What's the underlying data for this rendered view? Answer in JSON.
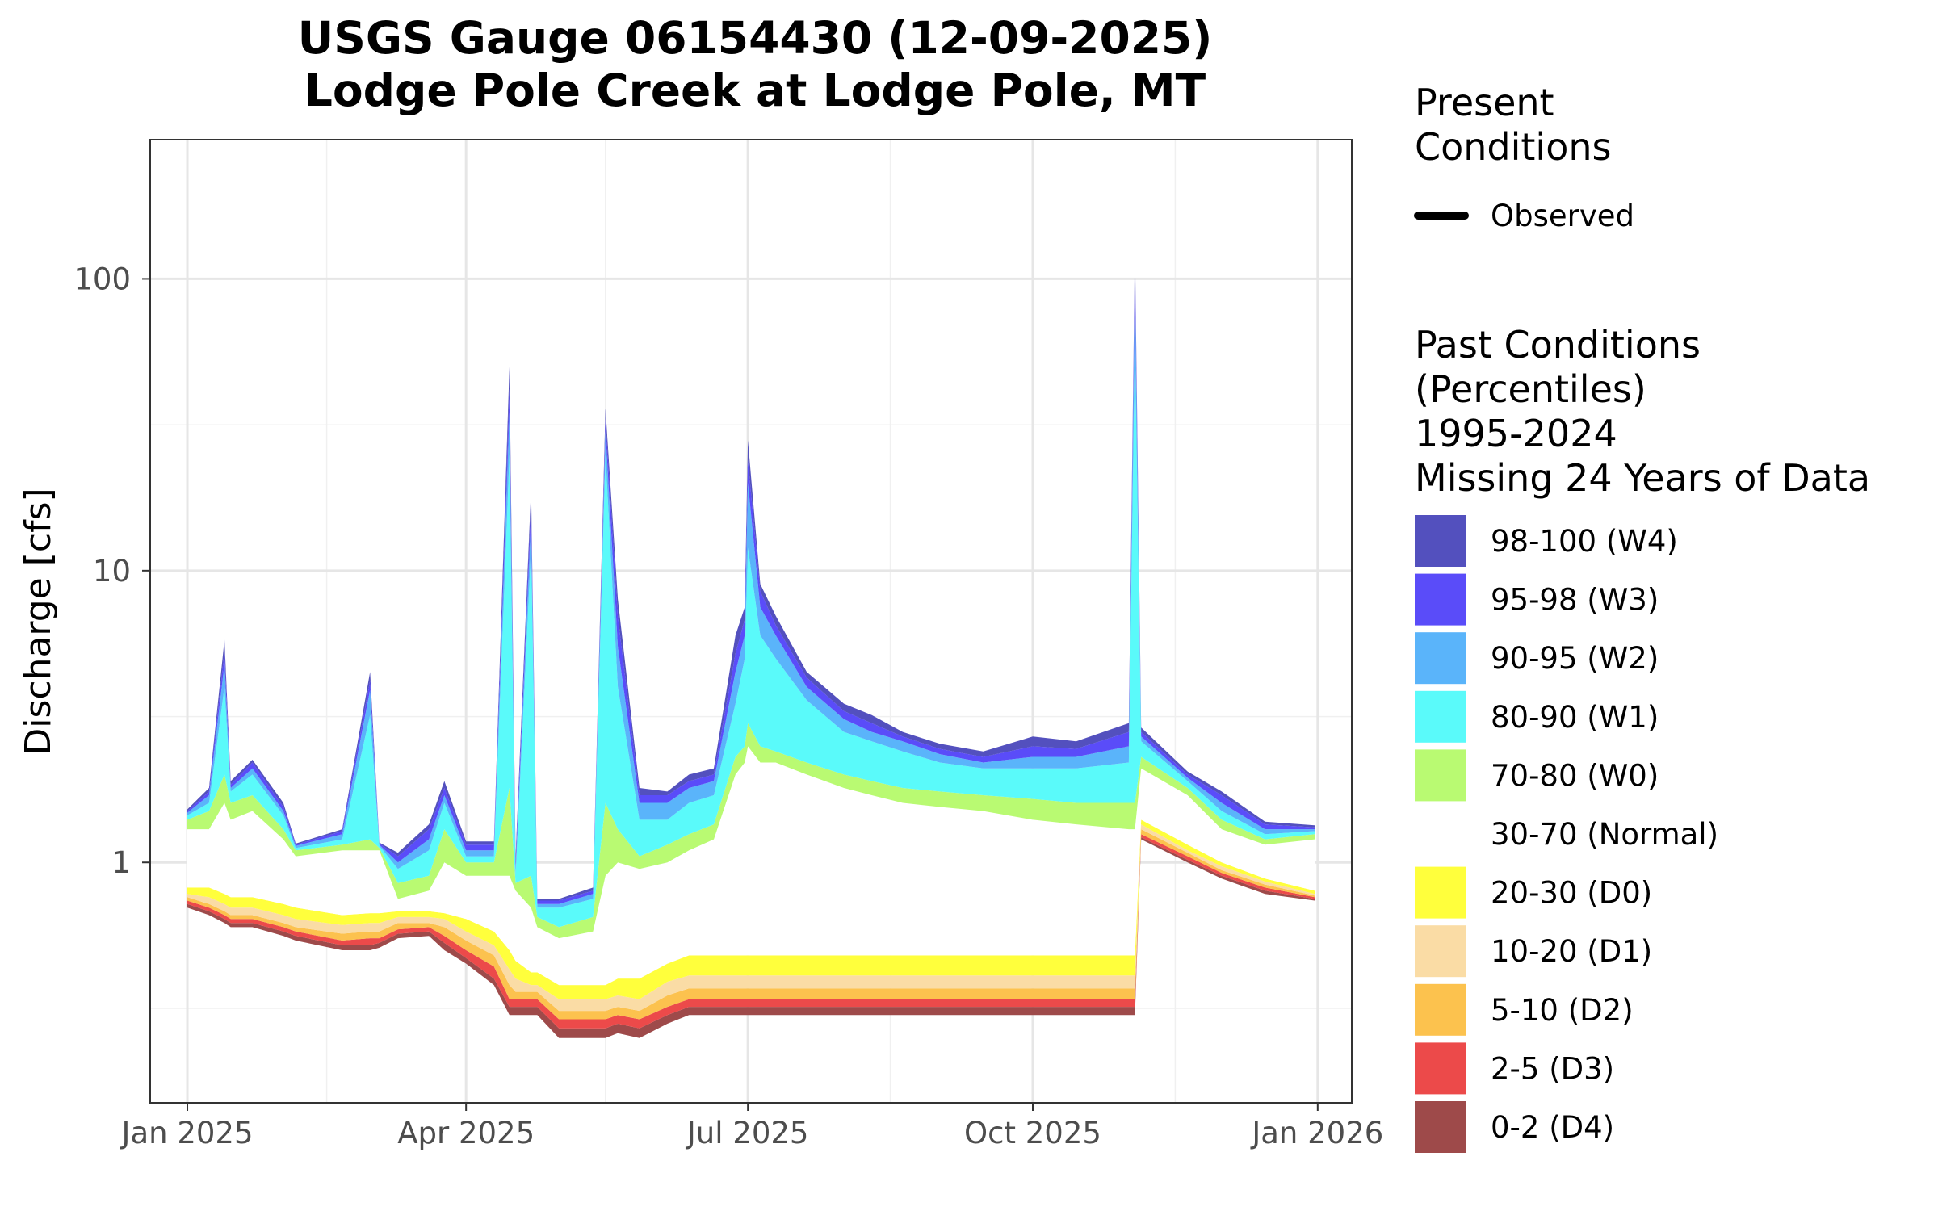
{
  "chart_data": {
    "type": "area",
    "title": "USGS Gauge 06154430 (12-09-2025)",
    "subtitle": "Lodge Pole Creek at Lodge Pole, MT",
    "xlabel": "",
    "ylabel": "Discharge [cfs]",
    "y_scale": "log",
    "ylim": [
      0.15,
      300
    ],
    "xlim": [
      "2024-12-20",
      "2026-01-12"
    ],
    "x_ticks": [
      {
        "date": "2025-01-01",
        "label": "Jan 2025"
      },
      {
        "date": "2025-04-01",
        "label": "Apr 2025"
      },
      {
        "date": "2025-07-01",
        "label": "Jul 2025"
      },
      {
        "date": "2025-10-01",
        "label": "Oct 2025"
      },
      {
        "date": "2026-01-01",
        "label": "Jan 2026"
      }
    ],
    "x_minor_ticks": [
      "2025-02-15",
      "2025-05-16",
      "2025-08-16",
      "2025-11-16"
    ],
    "y_ticks": [
      {
        "value": 1,
        "label": "1"
      },
      {
        "value": 10,
        "label": "10"
      },
      {
        "value": 100,
        "label": "100"
      }
    ],
    "y_minor_ticks": [
      0.316,
      3.16,
      31.6
    ],
    "grid": true,
    "legend_position": "right",
    "bands": [
      "p0",
      "p2",
      "p5",
      "p10",
      "p20",
      "p30",
      "p70",
      "p80",
      "p90",
      "p95",
      "p98",
      "p100"
    ],
    "series": [
      {
        "date": "2025-01-01",
        "p0": 0.7,
        "p2": 0.72,
        "p5": 0.74,
        "p10": 0.76,
        "p20": 0.78,
        "p30": 0.82,
        "p70": 1.3,
        "p80": 1.4,
        "p90": 1.45,
        "p95": 1.48,
        "p98": 1.5,
        "p100": 1.52
      },
      {
        "date": "2025-01-08",
        "p0": 0.66,
        "p2": 0.68,
        "p5": 0.7,
        "p10": 0.72,
        "p20": 0.76,
        "p30": 0.82,
        "p70": 1.3,
        "p80": 1.5,
        "p90": 1.6,
        "p95": 1.7,
        "p98": 1.75,
        "p100": 1.8
      },
      {
        "date": "2025-01-13",
        "p0": 0.62,
        "p2": 0.64,
        "p5": 0.66,
        "p10": 0.68,
        "p20": 0.72,
        "p30": 0.78,
        "p70": 1.6,
        "p80": 2.0,
        "p90": 4.0,
        "p95": 4.8,
        "p98": 5.3,
        "p100": 5.8
      },
      {
        "date": "2025-01-15",
        "p0": 0.6,
        "p2": 0.62,
        "p5": 0.64,
        "p10": 0.66,
        "p20": 0.7,
        "p30": 0.76,
        "p70": 1.4,
        "p80": 1.6,
        "p90": 1.75,
        "p95": 1.8,
        "p98": 1.85,
        "p100": 1.9
      },
      {
        "date": "2025-01-22",
        "p0": 0.6,
        "p2": 0.62,
        "p5": 0.64,
        "p10": 0.66,
        "p20": 0.7,
        "p30": 0.76,
        "p70": 1.5,
        "p80": 1.7,
        "p90": 2.0,
        "p95": 2.1,
        "p98": 2.2,
        "p100": 2.25
      },
      {
        "date": "2025-02-01",
        "p0": 0.56,
        "p2": 0.58,
        "p5": 0.6,
        "p10": 0.62,
        "p20": 0.66,
        "p30": 0.72,
        "p70": 1.2,
        "p80": 1.3,
        "p90": 1.45,
        "p95": 1.5,
        "p98": 1.55,
        "p100": 1.6
      },
      {
        "date": "2025-02-05",
        "p0": 0.54,
        "p2": 0.56,
        "p5": 0.58,
        "p10": 0.6,
        "p20": 0.64,
        "p30": 0.7,
        "p70": 1.05,
        "p80": 1.1,
        "p90": 1.12,
        "p95": 1.14,
        "p98": 1.15,
        "p100": 1.16
      },
      {
        "date": "2025-02-20",
        "p0": 0.5,
        "p2": 0.52,
        "p5": 0.54,
        "p10": 0.57,
        "p20": 0.61,
        "p30": 0.66,
        "p70": 1.1,
        "p80": 1.15,
        "p90": 1.2,
        "p95": 1.25,
        "p98": 1.28,
        "p100": 1.3
      },
      {
        "date": "2025-03-01",
        "p0": 0.5,
        "p2": 0.52,
        "p5": 0.55,
        "p10": 0.58,
        "p20": 0.62,
        "p30": 0.67,
        "p70": 1.1,
        "p80": 1.2,
        "p90": 3.2,
        "p95": 3.9,
        "p98": 4.2,
        "p100": 4.5
      },
      {
        "date": "2025-03-04",
        "p0": 0.51,
        "p2": 0.53,
        "p5": 0.55,
        "p10": 0.58,
        "p20": 0.62,
        "p30": 0.67,
        "p70": 1.1,
        "p80": 1.12,
        "p90": 1.14,
        "p95": 1.15,
        "p98": 1.16,
        "p100": 1.17
      },
      {
        "date": "2025-03-10",
        "p0": 0.55,
        "p2": 0.57,
        "p5": 0.59,
        "p10": 0.62,
        "p20": 0.65,
        "p30": 0.68,
        "p70": 0.75,
        "p80": 0.85,
        "p90": 0.95,
        "p95": 1.0,
        "p98": 1.05,
        "p100": 1.08
      },
      {
        "date": "2025-03-20",
        "p0": 0.56,
        "p2": 0.58,
        "p5": 0.6,
        "p10": 0.62,
        "p20": 0.65,
        "p30": 0.68,
        "p70": 0.8,
        "p80": 0.9,
        "p90": 1.1,
        "p95": 1.2,
        "p98": 1.3,
        "p100": 1.35
      },
      {
        "date": "2025-03-25",
        "p0": 0.5,
        "p2": 0.53,
        "p5": 0.56,
        "p10": 0.6,
        "p20": 0.64,
        "p30": 0.67,
        "p70": 1.0,
        "p80": 1.3,
        "p90": 1.6,
        "p95": 1.7,
        "p98": 1.8,
        "p100": 1.9
      },
      {
        "date": "2025-04-01",
        "p0": 0.45,
        "p2": 0.47,
        "p5": 0.5,
        "p10": 0.54,
        "p20": 0.58,
        "p30": 0.64,
        "p70": 0.9,
        "p80": 1.0,
        "p90": 1.05,
        "p95": 1.1,
        "p98": 1.15,
        "p100": 1.18
      },
      {
        "date": "2025-04-10",
        "p0": 0.38,
        "p2": 0.4,
        "p5": 0.44,
        "p10": 0.48,
        "p20": 0.52,
        "p30": 0.58,
        "p70": 0.9,
        "p80": 1.0,
        "p90": 1.05,
        "p95": 1.1,
        "p98": 1.15,
        "p100": 1.18
      },
      {
        "date": "2025-04-15",
        "p0": 0.3,
        "p2": 0.32,
        "p5": 0.34,
        "p10": 0.38,
        "p20": 0.43,
        "p30": 0.5,
        "p70": 0.9,
        "p80": 1.8,
        "p90": 25,
        "p95": 35,
        "p98": 42,
        "p100": 50
      },
      {
        "date": "2025-04-17",
        "p0": 0.3,
        "p2": 0.32,
        "p5": 0.34,
        "p10": 0.36,
        "p20": 0.4,
        "p30": 0.46,
        "p70": 0.8,
        "p80": 0.85,
        "p90": 0.9,
        "p95": 0.95,
        "p98": 1.0,
        "p100": 1.05
      },
      {
        "date": "2025-04-22",
        "p0": 0.3,
        "p2": 0.32,
        "p5": 0.34,
        "p10": 0.36,
        "p20": 0.38,
        "p30": 0.42,
        "p70": 0.7,
        "p80": 0.9,
        "p90": 12,
        "p95": 15,
        "p98": 17,
        "p100": 19
      },
      {
        "date": "2025-04-24",
        "p0": 0.3,
        "p2": 0.32,
        "p5": 0.34,
        "p10": 0.36,
        "p20": 0.38,
        "p30": 0.42,
        "p70": 0.6,
        "p80": 0.65,
        "p90": 0.7,
        "p95": 0.72,
        "p98": 0.74,
        "p100": 0.75
      },
      {
        "date": "2025-05-01",
        "p0": 0.25,
        "p2": 0.27,
        "p5": 0.29,
        "p10": 0.31,
        "p20": 0.34,
        "p30": 0.38,
        "p70": 0.55,
        "p80": 0.6,
        "p90": 0.7,
        "p95": 0.72,
        "p98": 0.74,
        "p100": 0.75
      },
      {
        "date": "2025-05-12",
        "p0": 0.25,
        "p2": 0.27,
        "p5": 0.29,
        "p10": 0.31,
        "p20": 0.34,
        "p30": 0.38,
        "p70": 0.58,
        "p80": 0.65,
        "p90": 0.75,
        "p95": 0.78,
        "p98": 0.8,
        "p100": 0.82
      },
      {
        "date": "2025-05-16",
        "p0": 0.25,
        "p2": 0.27,
        "p5": 0.29,
        "p10": 0.31,
        "p20": 0.34,
        "p30": 0.38,
        "p70": 0.9,
        "p80": 1.6,
        "p90": 25,
        "p95": 30,
        "p98": 33,
        "p100": 36
      },
      {
        "date": "2025-05-20",
        "p0": 0.26,
        "p2": 0.28,
        "p5": 0.3,
        "p10": 0.32,
        "p20": 0.35,
        "p30": 0.4,
        "p70": 1.0,
        "p80": 1.3,
        "p90": 4.0,
        "p95": 5.5,
        "p98": 7.0,
        "p100": 8.0
      },
      {
        "date": "2025-05-27",
        "p0": 0.25,
        "p2": 0.27,
        "p5": 0.29,
        "p10": 0.31,
        "p20": 0.34,
        "p30": 0.4,
        "p70": 0.95,
        "p80": 1.05,
        "p90": 1.4,
        "p95": 1.6,
        "p98": 1.7,
        "p100": 1.8
      },
      {
        "date": "2025-06-05",
        "p0": 0.28,
        "p2": 0.3,
        "p5": 0.32,
        "p10": 0.35,
        "p20": 0.39,
        "p30": 0.45,
        "p70": 1.0,
        "p80": 1.15,
        "p90": 1.4,
        "p95": 1.6,
        "p98": 1.7,
        "p100": 1.75
      },
      {
        "date": "2025-06-12",
        "p0": 0.3,
        "p2": 0.32,
        "p5": 0.34,
        "p10": 0.37,
        "p20": 0.41,
        "p30": 0.48,
        "p70": 1.1,
        "p80": 1.25,
        "p90": 1.6,
        "p95": 1.8,
        "p98": 1.9,
        "p100": 2.0
      },
      {
        "date": "2025-06-20",
        "p0": 0.3,
        "p2": 0.32,
        "p5": 0.34,
        "p10": 0.37,
        "p20": 0.41,
        "p30": 0.48,
        "p70": 1.2,
        "p80": 1.35,
        "p90": 1.7,
        "p95": 1.9,
        "p98": 2.0,
        "p100": 2.1
      },
      {
        "date": "2025-06-27",
        "p0": 0.3,
        "p2": 0.32,
        "p5": 0.34,
        "p10": 0.37,
        "p20": 0.41,
        "p30": 0.48,
        "p70": 2.0,
        "p80": 2.3,
        "p90": 3.5,
        "p95": 4.5,
        "p98": 5.2,
        "p100": 6.0
      },
      {
        "date": "2025-06-30",
        "p0": 0.3,
        "p2": 0.32,
        "p5": 0.34,
        "p10": 0.37,
        "p20": 0.41,
        "p30": 0.48,
        "p70": 2.2,
        "p80": 2.5,
        "p90": 5.0,
        "p95": 6.0,
        "p98": 6.8,
        "p100": 7.5
      },
      {
        "date": "2025-07-01",
        "p0": 0.3,
        "p2": 0.32,
        "p5": 0.34,
        "p10": 0.37,
        "p20": 0.41,
        "p30": 0.48,
        "p70": 2.5,
        "p80": 3.0,
        "p90": 12,
        "p95": 20,
        "p98": 24,
        "p100": 28
      },
      {
        "date": "2025-07-05",
        "p0": 0.3,
        "p2": 0.32,
        "p5": 0.34,
        "p10": 0.37,
        "p20": 0.41,
        "p30": 0.48,
        "p70": 2.2,
        "p80": 2.5,
        "p90": 6.0,
        "p95": 7.5,
        "p98": 8.5,
        "p100": 9.0
      },
      {
        "date": "2025-07-10",
        "p0": 0.3,
        "p2": 0.32,
        "p5": 0.34,
        "p10": 0.37,
        "p20": 0.41,
        "p30": 0.48,
        "p70": 2.2,
        "p80": 2.4,
        "p90": 5.0,
        "p95": 6.0,
        "p98": 6.5,
        "p100": 7.0
      },
      {
        "date": "2025-07-20",
        "p0": 0.3,
        "p2": 0.32,
        "p5": 0.34,
        "p10": 0.37,
        "p20": 0.41,
        "p30": 0.48,
        "p70": 2.0,
        "p80": 2.2,
        "p90": 3.6,
        "p95": 4.0,
        "p98": 4.3,
        "p100": 4.5
      },
      {
        "date": "2025-08-01",
        "p0": 0.3,
        "p2": 0.32,
        "p5": 0.34,
        "p10": 0.37,
        "p20": 0.41,
        "p30": 0.48,
        "p70": 1.8,
        "p80": 2.0,
        "p90": 2.8,
        "p95": 3.1,
        "p98": 3.3,
        "p100": 3.5
      },
      {
        "date": "2025-08-10",
        "p0": 0.3,
        "p2": 0.32,
        "p5": 0.34,
        "p10": 0.37,
        "p20": 0.41,
        "p30": 0.48,
        "p70": 1.7,
        "p80": 1.9,
        "p90": 2.6,
        "p95": 2.8,
        "p98": 3.0,
        "p100": 3.2
      },
      {
        "date": "2025-08-20",
        "p0": 0.3,
        "p2": 0.32,
        "p5": 0.34,
        "p10": 0.37,
        "p20": 0.41,
        "p30": 0.48,
        "p70": 1.6,
        "p80": 1.8,
        "p90": 2.4,
        "p95": 2.6,
        "p98": 2.7,
        "p100": 2.8
      },
      {
        "date": "2025-09-01",
        "p0": 0.3,
        "p2": 0.32,
        "p5": 0.34,
        "p10": 0.37,
        "p20": 0.41,
        "p30": 0.48,
        "p70": 1.55,
        "p80": 1.75,
        "p90": 2.2,
        "p95": 2.35,
        "p98": 2.45,
        "p100": 2.55
      },
      {
        "date": "2025-09-15",
        "p0": 0.3,
        "p2": 0.32,
        "p5": 0.34,
        "p10": 0.37,
        "p20": 0.41,
        "p30": 0.48,
        "p70": 1.5,
        "p80": 1.7,
        "p90": 2.1,
        "p95": 2.2,
        "p98": 2.3,
        "p100": 2.4
      },
      {
        "date": "2025-10-01",
        "p0": 0.3,
        "p2": 0.32,
        "p5": 0.34,
        "p10": 0.37,
        "p20": 0.41,
        "p30": 0.48,
        "p70": 1.4,
        "p80": 1.65,
        "p90": 2.1,
        "p95": 2.3,
        "p98": 2.5,
        "p100": 2.7
      },
      {
        "date": "2025-10-15",
        "p0": 0.3,
        "p2": 0.32,
        "p5": 0.34,
        "p10": 0.37,
        "p20": 0.41,
        "p30": 0.48,
        "p70": 1.35,
        "p80": 1.6,
        "p90": 2.1,
        "p95": 2.3,
        "p98": 2.45,
        "p100": 2.6
      },
      {
        "date": "2025-11-01",
        "p0": 0.3,
        "p2": 0.32,
        "p5": 0.34,
        "p10": 0.37,
        "p20": 0.41,
        "p30": 0.48,
        "p70": 1.3,
        "p80": 1.6,
        "p90": 2.2,
        "p95": 2.5,
        "p98": 2.8,
        "p100": 3.0
      },
      {
        "date": "2025-11-03",
        "p0": 0.3,
        "p2": 0.32,
        "p5": 0.34,
        "p10": 0.37,
        "p20": 0.41,
        "p30": 0.48,
        "p70": 1.3,
        "p80": 1.6,
        "p90": 60,
        "p95": 100,
        "p98": 120,
        "p100": 130
      },
      {
        "date": "2025-11-05",
        "p0": 1.2,
        "p2": 1.22,
        "p5": 1.25,
        "p10": 1.3,
        "p20": 1.35,
        "p30": 1.4,
        "p70": 2.1,
        "p80": 2.3,
        "p90": 2.6,
        "p95": 2.7,
        "p98": 2.8,
        "p100": 2.9
      },
      {
        "date": "2025-11-20",
        "p0": 1.0,
        "p2": 1.02,
        "p5": 1.05,
        "p10": 1.08,
        "p20": 1.1,
        "p30": 1.15,
        "p70": 1.7,
        "p80": 1.8,
        "p90": 1.9,
        "p95": 1.95,
        "p98": 2.0,
        "p100": 2.05
      },
      {
        "date": "2025-12-01",
        "p0": 0.88,
        "p2": 0.9,
        "p5": 0.92,
        "p10": 0.94,
        "p20": 0.97,
        "p30": 1.0,
        "p70": 1.3,
        "p80": 1.4,
        "p90": 1.5,
        "p95": 1.6,
        "p98": 1.7,
        "p100": 1.75
      },
      {
        "date": "2025-12-15",
        "p0": 0.78,
        "p2": 0.8,
        "p5": 0.82,
        "p10": 0.84,
        "p20": 0.86,
        "p30": 0.88,
        "p70": 1.15,
        "p80": 1.2,
        "p90": 1.25,
        "p95": 1.3,
        "p98": 1.35,
        "p100": 1.38
      },
      {
        "date": "2025-12-31",
        "p0": 0.74,
        "p2": 0.75,
        "p5": 0.76,
        "p10": 0.77,
        "p20": 0.78,
        "p30": 0.8,
        "p70": 1.2,
        "p80": 1.25,
        "p90": 1.28,
        "p95": 1.3,
        "p98": 1.32,
        "p100": 1.34
      }
    ]
  },
  "legend": {
    "present_title_1": "Present",
    "present_title_2": "Conditions",
    "observed_label": "Observed",
    "observed_color": "#000000",
    "past_title_1": "Past Conditions",
    "past_title_2": "(Percentiles)",
    "past_title_3": "1995-2024",
    "past_title_4": "Missing 24 Years of Data",
    "items": [
      {
        "label": "98-100 (W4)",
        "color": "#5350BE"
      },
      {
        "label": "95-98 (W3)",
        "color": "#5A4CF9"
      },
      {
        "label": "90-95 (W2)",
        "color": "#5AB4FA"
      },
      {
        "label": "80-90 (W1)",
        "color": "#5AFAFA"
      },
      {
        "label": "70-80 (W0)",
        "color": "#B9FA72"
      },
      {
        "label": "30-70 (Normal)",
        "color": "#FFFFFF"
      },
      {
        "label": "20-30 (D0)",
        "color": "#FFFF3C"
      },
      {
        "label": "10-20 (D1)",
        "color": "#FADCA5"
      },
      {
        "label": "5-10 (D2)",
        "color": "#FCC24E"
      },
      {
        "label": "2-5 (D3)",
        "color": "#EC4A4A"
      },
      {
        "label": "0-2 (D4)",
        "color": "#9E4A4A"
      }
    ]
  }
}
